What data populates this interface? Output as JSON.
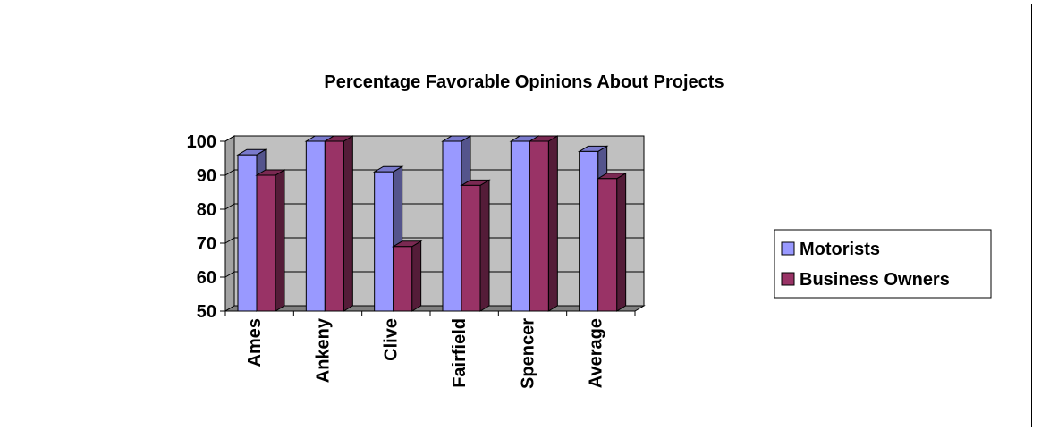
{
  "chart_data": {
    "type": "bar",
    "title": "Percentage Favorable Opinions About Projects",
    "xlabel": "",
    "ylabel": "",
    "categories": [
      "Ames",
      "Ankeny",
      "Clive",
      "Fairfield",
      "Spencer",
      "Average"
    ],
    "series": [
      {
        "name": "Motorists",
        "values": [
          96,
          100,
          91,
          100,
          100,
          97
        ],
        "color": "#9999ff"
      },
      {
        "name": "Business Owners",
        "values": [
          90,
          100,
          69,
          87,
          100,
          89
        ],
        "color": "#993366"
      }
    ],
    "ylim": [
      50,
      100
    ],
    "yticks": [
      50,
      60,
      70,
      80,
      90,
      100
    ],
    "grid": true,
    "legend_position": "right",
    "style": "3d-clustered-column",
    "colors": {
      "wall": "#c0c0c0",
      "floor": "#808080",
      "grid": "#000000"
    }
  }
}
